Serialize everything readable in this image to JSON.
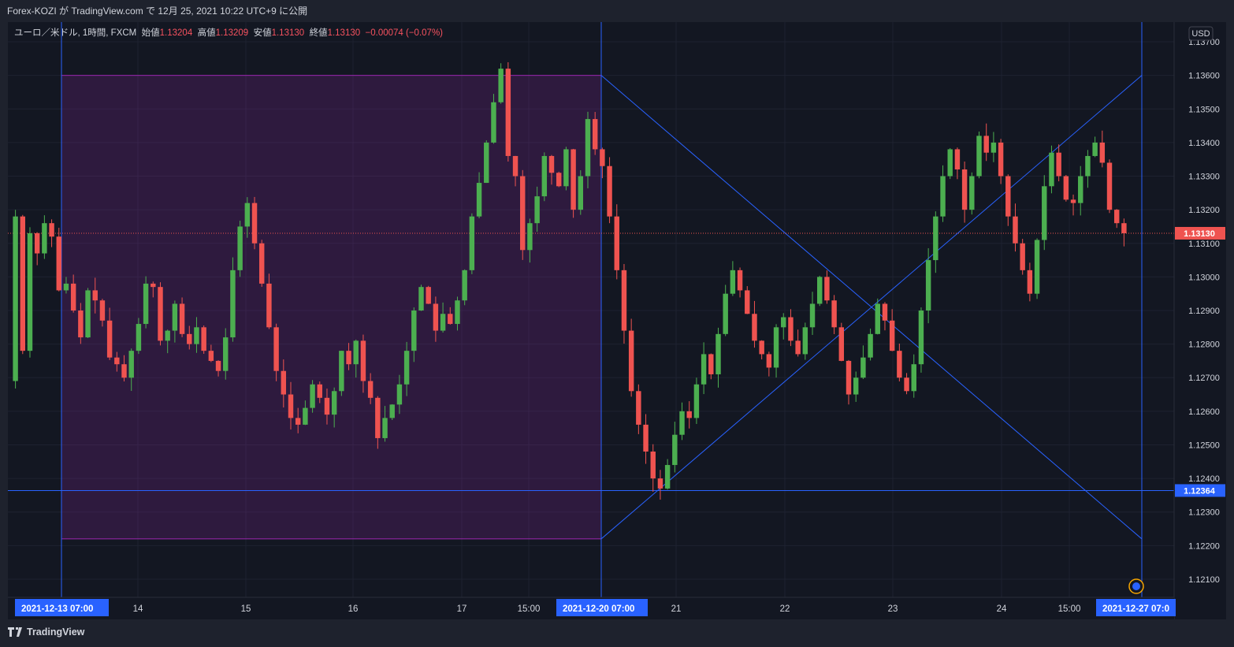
{
  "header": {
    "title": "Forex-KOZI が TradingView.com で 12月 25, 2021 10:22 UTC+9 に公開"
  },
  "legend": {
    "symbol": "ユーロ／米ドル, 1時間, FXCM",
    "open_label": "始値",
    "open": "1.13204",
    "high_label": "高値",
    "high": "1.13209",
    "low_label": "安値",
    "low": "1.13130",
    "close_label": "終値",
    "close": "1.13130",
    "change": "−0.00074 (−0.07%)"
  },
  "footer": {
    "brand": "TradingView"
  },
  "colors": {
    "up": "#26a69a",
    "up_candle": "#4caf50",
    "down": "#ef5350",
    "blue_line": "#2962ff",
    "purple_box": "#9c27b0",
    "background": "#131722"
  },
  "chart_data": {
    "type": "candlestick",
    "currency": "USD",
    "ylim": [
      1.1206,
      1.1374
    ],
    "y_ticks": [
      "1.13700",
      "1.13600",
      "1.13500",
      "1.13400",
      "1.13300",
      "1.13200",
      "1.13100",
      "1.13000",
      "1.12900",
      "1.12800",
      "1.12700",
      "1.12600",
      "1.12500",
      "1.12400",
      "1.12300",
      "1.12200",
      "1.12100"
    ],
    "x_ticks": [
      "14",
      "15",
      "16",
      "17",
      "15:00",
      "21",
      "22",
      "23",
      "24",
      "15:00"
    ],
    "x_highlight_labels": [
      "2021-12-13   07:00",
      "2021-12-20   07:00",
      "2021-12-27   07:0"
    ],
    "last_price": "1.13130",
    "horizontal_line_label": "1.12364",
    "horizontal_line_value": 1.12364,
    "rectangle": {
      "top": 1.136,
      "bottom": 1.1222
    },
    "x_lines": [
      {
        "from": 1.136,
        "to": 1.1222
      },
      {
        "from": 1.1222,
        "to": 1.136
      }
    ],
    "ohlc_path": [
      1.1269,
      1.1318,
      1.1278,
      1.1313,
      1.1307,
      1.1316,
      1.1312,
      1.1296,
      1.1298,
      1.129,
      1.1282,
      1.1296,
      1.1293,
      1.1287,
      1.1276,
      1.1274,
      1.127,
      1.1278,
      1.1286,
      1.1298,
      1.1297,
      1.1281,
      1.1284,
      1.1292,
      1.1283,
      1.128,
      1.1285,
      1.1278,
      1.1275,
      1.1272,
      1.1282,
      1.1302,
      1.1315,
      1.1322,
      1.131,
      1.1298,
      1.1285,
      1.1272,
      1.1265,
      1.1258,
      1.1256,
      1.1261,
      1.1268,
      1.1264,
      1.1259,
      1.1266,
      1.1278,
      1.1274,
      1.1281,
      1.1269,
      1.1264,
      1.1252,
      1.1258,
      1.1262,
      1.1268,
      1.1278,
      1.129,
      1.1297,
      1.1292,
      1.1284,
      1.1289,
      1.1286,
      1.1293,
      1.1302,
      1.1318,
      1.1328,
      1.134,
      1.1352,
      1.1362,
      1.1336,
      1.133,
      1.1308,
      1.1316,
      1.1324,
      1.1336,
      1.1331,
      1.1327,
      1.1338,
      1.132,
      1.133,
      1.1347,
      1.1338,
      1.1333,
      1.1318,
      1.1302,
      1.1284,
      1.1266,
      1.1256,
      1.1248,
      1.124,
      1.1237,
      1.1244,
      1.1253,
      1.126,
      1.1258,
      1.1268,
      1.1277,
      1.1271,
      1.1283,
      1.1295,
      1.1302,
      1.1296,
      1.1289,
      1.1281,
      1.1277,
      1.1273,
      1.1285,
      1.1288,
      1.1281,
      1.1277,
      1.1285,
      1.1292,
      1.13,
      1.1293,
      1.1285,
      1.1275,
      1.1265,
      1.127,
      1.1276,
      1.1283,
      1.1292,
      1.1287,
      1.1278,
      1.127,
      1.1266,
      1.1274,
      1.129,
      1.1305,
      1.1318,
      1.133,
      1.1338,
      1.1332,
      1.132,
      1.133,
      1.1342,
      1.1337,
      1.134,
      1.133,
      1.1318,
      1.131,
      1.1302,
      1.1295,
      1.1311,
      1.1327,
      1.1337,
      1.133,
      1.1323,
      1.1322,
      1.133,
      1.1336,
      1.134,
      1.1334,
      1.132,
      1.1316,
      1.1313
    ]
  }
}
